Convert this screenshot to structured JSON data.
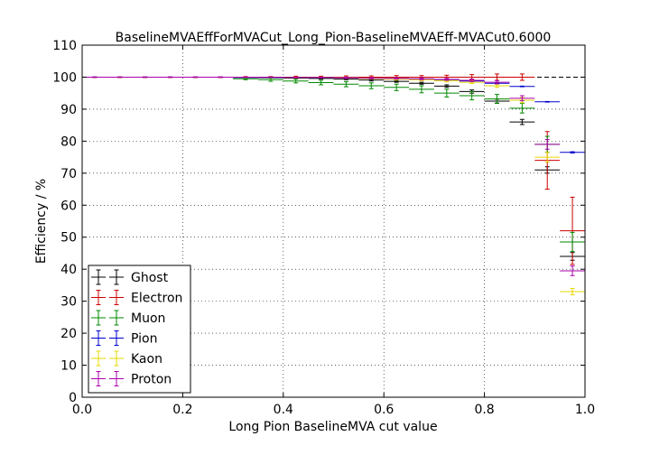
{
  "chart_data": {
    "type": "scatter",
    "title": "BaselineMVAEffForMVACut_Long_Pion-BaselineMVAEff-MVACut0.6000",
    "xlabel": "Long Pion BaselineMVA cut value",
    "ylabel": "Efficiency / %",
    "xlim": [
      0.0,
      1.0
    ],
    "ylim": [
      0,
      110
    ],
    "xticks": [
      "0.0",
      "0.2",
      "0.4",
      "0.6",
      "0.8",
      "1.0"
    ],
    "yticks": [
      "0",
      "10",
      "20",
      "30",
      "40",
      "50",
      "60",
      "70",
      "80",
      "90",
      "100",
      "110"
    ],
    "grid": true,
    "legend_position": "lower-left",
    "reference_line_y": 100,
    "series": [
      {
        "name": "Ghost",
        "color": "#000000",
        "points": [
          {
            "x": 0.025,
            "xerr": 0.025,
            "y": 100.0,
            "yerr": 0.1
          },
          {
            "x": 0.075,
            "xerr": 0.025,
            "y": 100.0,
            "yerr": 0.1
          },
          {
            "x": 0.125,
            "xerr": 0.025,
            "y": 100.0,
            "yerr": 0.1
          },
          {
            "x": 0.175,
            "xerr": 0.025,
            "y": 100.0,
            "yerr": 0.1
          },
          {
            "x": 0.225,
            "xerr": 0.025,
            "y": 100.0,
            "yerr": 0.1
          },
          {
            "x": 0.275,
            "xerr": 0.025,
            "y": 100.0,
            "yerr": 0.1
          },
          {
            "x": 0.325,
            "xerr": 0.025,
            "y": 99.9,
            "yerr": 0.1
          },
          {
            "x": 0.375,
            "xerr": 0.025,
            "y": 99.8,
            "yerr": 0.1
          },
          {
            "x": 0.425,
            "xerr": 0.025,
            "y": 99.7,
            "yerr": 0.2
          },
          {
            "x": 0.475,
            "xerr": 0.025,
            "y": 99.6,
            "yerr": 0.2
          },
          {
            "x": 0.525,
            "xerr": 0.025,
            "y": 99.4,
            "yerr": 0.2
          },
          {
            "x": 0.575,
            "xerr": 0.025,
            "y": 99.1,
            "yerr": 0.3
          },
          {
            "x": 0.625,
            "xerr": 0.025,
            "y": 98.7,
            "yerr": 0.3
          },
          {
            "x": 0.675,
            "xerr": 0.025,
            "y": 98.1,
            "yerr": 0.3
          },
          {
            "x": 0.725,
            "xerr": 0.025,
            "y": 97.2,
            "yerr": 0.4
          },
          {
            "x": 0.775,
            "xerr": 0.025,
            "y": 95.5,
            "yerr": 0.5
          },
          {
            "x": 0.825,
            "xerr": 0.025,
            "y": 92.5,
            "yerr": 0.6
          },
          {
            "x": 0.875,
            "xerr": 0.025,
            "y": 86.0,
            "yerr": 0.8
          },
          {
            "x": 0.925,
            "xerr": 0.025,
            "y": 71.0,
            "yerr": 1.0
          },
          {
            "x": 0.975,
            "xerr": 0.025,
            "y": 44.0,
            "yerr": 1.2
          }
        ]
      },
      {
        "name": "Electron",
        "color": "#cc0000",
        "points": [
          {
            "x": 0.025,
            "xerr": 0.025,
            "y": 100.0,
            "yerr": 0.1
          },
          {
            "x": 0.075,
            "xerr": 0.025,
            "y": 100.0,
            "yerr": 0.1
          },
          {
            "x": 0.125,
            "xerr": 0.025,
            "y": 100.0,
            "yerr": 0.1
          },
          {
            "x": 0.175,
            "xerr": 0.025,
            "y": 100.0,
            "yerr": 0.1
          },
          {
            "x": 0.225,
            "xerr": 0.025,
            "y": 100.0,
            "yerr": 0.1
          },
          {
            "x": 0.275,
            "xerr": 0.025,
            "y": 100.0,
            "yerr": 0.1
          },
          {
            "x": 0.325,
            "xerr": 0.025,
            "y": 100.0,
            "yerr": 0.2
          },
          {
            "x": 0.375,
            "xerr": 0.025,
            "y": 100.0,
            "yerr": 0.2
          },
          {
            "x": 0.425,
            "xerr": 0.025,
            "y": 100.0,
            "yerr": 0.3
          },
          {
            "x": 0.475,
            "xerr": 0.025,
            "y": 100.0,
            "yerr": 0.3
          },
          {
            "x": 0.525,
            "xerr": 0.025,
            "y": 100.0,
            "yerr": 0.4
          },
          {
            "x": 0.575,
            "xerr": 0.025,
            "y": 100.0,
            "yerr": 0.4
          },
          {
            "x": 0.625,
            "xerr": 0.025,
            "y": 100.0,
            "yerr": 0.5
          },
          {
            "x": 0.675,
            "xerr": 0.025,
            "y": 100.0,
            "yerr": 0.5
          },
          {
            "x": 0.725,
            "xerr": 0.025,
            "y": 100.0,
            "yerr": 0.6
          },
          {
            "x": 0.775,
            "xerr": 0.025,
            "y": 100.0,
            "yerr": 0.8
          },
          {
            "x": 0.825,
            "xerr": 0.025,
            "y": 100.0,
            "yerr": 1.0
          },
          {
            "x": 0.875,
            "xerr": 0.025,
            "y": 100.0,
            "yerr": 1.0
          },
          {
            "x": 0.925,
            "xerr": 0.025,
            "y": 74.0,
            "yerr": 9.0
          },
          {
            "x": 0.975,
            "xerr": 0.025,
            "y": 52.0,
            "yerr": 10.5
          }
        ]
      },
      {
        "name": "Muon",
        "color": "#008800",
        "points": [
          {
            "x": 0.025,
            "xerr": 0.025,
            "y": 100.0,
            "yerr": 0.1
          },
          {
            "x": 0.075,
            "xerr": 0.025,
            "y": 100.0,
            "yerr": 0.1
          },
          {
            "x": 0.125,
            "xerr": 0.025,
            "y": 100.0,
            "yerr": 0.1
          },
          {
            "x": 0.175,
            "xerr": 0.025,
            "y": 100.0,
            "yerr": 0.1
          },
          {
            "x": 0.225,
            "xerr": 0.025,
            "y": 100.0,
            "yerr": 0.1
          },
          {
            "x": 0.275,
            "xerr": 0.025,
            "y": 100.0,
            "yerr": 0.1
          },
          {
            "x": 0.325,
            "xerr": 0.025,
            "y": 99.5,
            "yerr": 0.3
          },
          {
            "x": 0.375,
            "xerr": 0.025,
            "y": 99.2,
            "yerr": 0.5
          },
          {
            "x": 0.425,
            "xerr": 0.025,
            "y": 98.8,
            "yerr": 0.6
          },
          {
            "x": 0.475,
            "xerr": 0.025,
            "y": 98.3,
            "yerr": 0.7
          },
          {
            "x": 0.525,
            "xerr": 0.025,
            "y": 97.8,
            "yerr": 0.8
          },
          {
            "x": 0.575,
            "xerr": 0.025,
            "y": 97.3,
            "yerr": 0.9
          },
          {
            "x": 0.625,
            "xerr": 0.025,
            "y": 96.8,
            "yerr": 1.0
          },
          {
            "x": 0.675,
            "xerr": 0.025,
            "y": 96.2,
            "yerr": 1.1
          },
          {
            "x": 0.725,
            "xerr": 0.025,
            "y": 95.0,
            "yerr": 1.2
          },
          {
            "x": 0.775,
            "xerr": 0.025,
            "y": 94.2,
            "yerr": 1.3
          },
          {
            "x": 0.825,
            "xerr": 0.025,
            "y": 93.2,
            "yerr": 1.4
          },
          {
            "x": 0.875,
            "xerr": 0.025,
            "y": 90.3,
            "yerr": 1.5
          },
          {
            "x": 0.925,
            "xerr": 0.025,
            "y": 79.0,
            "yerr": 2.5
          },
          {
            "x": 0.975,
            "xerr": 0.025,
            "y": 48.5,
            "yerr": 3.0
          }
        ]
      },
      {
        "name": "Pion",
        "color": "#0000cc",
        "points": [
          {
            "x": 0.025,
            "xerr": 0.025,
            "y": 100.0,
            "yerr": 0.05
          },
          {
            "x": 0.075,
            "xerr": 0.025,
            "y": 100.0,
            "yerr": 0.05
          },
          {
            "x": 0.125,
            "xerr": 0.025,
            "y": 100.0,
            "yerr": 0.05
          },
          {
            "x": 0.175,
            "xerr": 0.025,
            "y": 100.0,
            "yerr": 0.05
          },
          {
            "x": 0.225,
            "xerr": 0.025,
            "y": 100.0,
            "yerr": 0.05
          },
          {
            "x": 0.275,
            "xerr": 0.025,
            "y": 100.0,
            "yerr": 0.05
          },
          {
            "x": 0.325,
            "xerr": 0.025,
            "y": 99.9,
            "yerr": 0.05
          },
          {
            "x": 0.375,
            "xerr": 0.025,
            "y": 99.9,
            "yerr": 0.05
          },
          {
            "x": 0.425,
            "xerr": 0.025,
            "y": 99.9,
            "yerr": 0.05
          },
          {
            "x": 0.475,
            "xerr": 0.025,
            "y": 99.8,
            "yerr": 0.05
          },
          {
            "x": 0.525,
            "xerr": 0.025,
            "y": 99.8,
            "yerr": 0.05
          },
          {
            "x": 0.575,
            "xerr": 0.025,
            "y": 99.7,
            "yerr": 0.05
          },
          {
            "x": 0.625,
            "xerr": 0.025,
            "y": 99.6,
            "yerr": 0.05
          },
          {
            "x": 0.675,
            "xerr": 0.025,
            "y": 99.4,
            "yerr": 0.05
          },
          {
            "x": 0.725,
            "xerr": 0.025,
            "y": 99.2,
            "yerr": 0.05
          },
          {
            "x": 0.775,
            "xerr": 0.025,
            "y": 98.8,
            "yerr": 0.1
          },
          {
            "x": 0.825,
            "xerr": 0.025,
            "y": 98.1,
            "yerr": 0.1
          },
          {
            "x": 0.875,
            "xerr": 0.025,
            "y": 97.1,
            "yerr": 0.1
          },
          {
            "x": 0.925,
            "xerr": 0.025,
            "y": 92.3,
            "yerr": 0.1
          },
          {
            "x": 0.975,
            "xerr": 0.025,
            "y": 76.5,
            "yerr": 0.2
          }
        ]
      },
      {
        "name": "Kaon",
        "color": "#e6d800",
        "points": [
          {
            "x": 0.025,
            "xerr": 0.025,
            "y": 100.0,
            "yerr": 0.1
          },
          {
            "x": 0.075,
            "xerr": 0.025,
            "y": 100.0,
            "yerr": 0.1
          },
          {
            "x": 0.125,
            "xerr": 0.025,
            "y": 100.0,
            "yerr": 0.1
          },
          {
            "x": 0.175,
            "xerr": 0.025,
            "y": 100.0,
            "yerr": 0.1
          },
          {
            "x": 0.225,
            "xerr": 0.025,
            "y": 100.0,
            "yerr": 0.1
          },
          {
            "x": 0.275,
            "xerr": 0.025,
            "y": 100.0,
            "yerr": 0.1
          },
          {
            "x": 0.325,
            "xerr": 0.025,
            "y": 100.0,
            "yerr": 0.1
          },
          {
            "x": 0.375,
            "xerr": 0.025,
            "y": 100.0,
            "yerr": 0.1
          },
          {
            "x": 0.425,
            "xerr": 0.025,
            "y": 99.9,
            "yerr": 0.1
          },
          {
            "x": 0.475,
            "xerr": 0.025,
            "y": 99.9,
            "yerr": 0.1
          },
          {
            "x": 0.525,
            "xerr": 0.025,
            "y": 99.8,
            "yerr": 0.2
          },
          {
            "x": 0.575,
            "xerr": 0.025,
            "y": 99.6,
            "yerr": 0.2
          },
          {
            "x": 0.625,
            "xerr": 0.025,
            "y": 99.4,
            "yerr": 0.3
          },
          {
            "x": 0.675,
            "xerr": 0.025,
            "y": 99.2,
            "yerr": 0.3
          },
          {
            "x": 0.725,
            "xerr": 0.025,
            "y": 98.9,
            "yerr": 0.4
          },
          {
            "x": 0.775,
            "xerr": 0.025,
            "y": 98.4,
            "yerr": 0.4
          },
          {
            "x": 0.825,
            "xerr": 0.025,
            "y": 97.3,
            "yerr": 0.5
          },
          {
            "x": 0.875,
            "xerr": 0.025,
            "y": 92.8,
            "yerr": 0.8
          },
          {
            "x": 0.925,
            "xerr": 0.025,
            "y": 75.0,
            "yerr": 1.5
          },
          {
            "x": 0.975,
            "xerr": 0.025,
            "y": 33.0,
            "yerr": 1.0
          }
        ]
      },
      {
        "name": "Proton",
        "color": "#aa00aa",
        "points": [
          {
            "x": 0.025,
            "xerr": 0.025,
            "y": 100.0,
            "yerr": 0.1
          },
          {
            "x": 0.075,
            "xerr": 0.025,
            "y": 100.0,
            "yerr": 0.1
          },
          {
            "x": 0.125,
            "xerr": 0.025,
            "y": 100.0,
            "yerr": 0.1
          },
          {
            "x": 0.175,
            "xerr": 0.025,
            "y": 100.0,
            "yerr": 0.1
          },
          {
            "x": 0.225,
            "xerr": 0.025,
            "y": 100.0,
            "yerr": 0.1
          },
          {
            "x": 0.275,
            "xerr": 0.025,
            "y": 100.0,
            "yerr": 0.1
          },
          {
            "x": 0.325,
            "xerr": 0.025,
            "y": 100.0,
            "yerr": 0.1
          },
          {
            "x": 0.375,
            "xerr": 0.025,
            "y": 100.0,
            "yerr": 0.1
          },
          {
            "x": 0.425,
            "xerr": 0.025,
            "y": 99.9,
            "yerr": 0.1
          },
          {
            "x": 0.475,
            "xerr": 0.025,
            "y": 99.9,
            "yerr": 0.1
          },
          {
            "x": 0.525,
            "xerr": 0.025,
            "y": 99.8,
            "yerr": 0.2
          },
          {
            "x": 0.575,
            "xerr": 0.025,
            "y": 99.7,
            "yerr": 0.2
          },
          {
            "x": 0.625,
            "xerr": 0.025,
            "y": 99.6,
            "yerr": 0.2
          },
          {
            "x": 0.675,
            "xerr": 0.025,
            "y": 99.5,
            "yerr": 0.3
          },
          {
            "x": 0.725,
            "xerr": 0.025,
            "y": 99.3,
            "yerr": 0.3
          },
          {
            "x": 0.775,
            "xerr": 0.025,
            "y": 99.0,
            "yerr": 0.4
          },
          {
            "x": 0.825,
            "xerr": 0.025,
            "y": 98.4,
            "yerr": 0.5
          },
          {
            "x": 0.875,
            "xerr": 0.025,
            "y": 93.4,
            "yerr": 0.8
          },
          {
            "x": 0.925,
            "xerr": 0.025,
            "y": 79.0,
            "yerr": 1.5
          },
          {
            "x": 0.975,
            "xerr": 0.025,
            "y": 39.5,
            "yerr": 1.5
          }
        ]
      }
    ]
  }
}
